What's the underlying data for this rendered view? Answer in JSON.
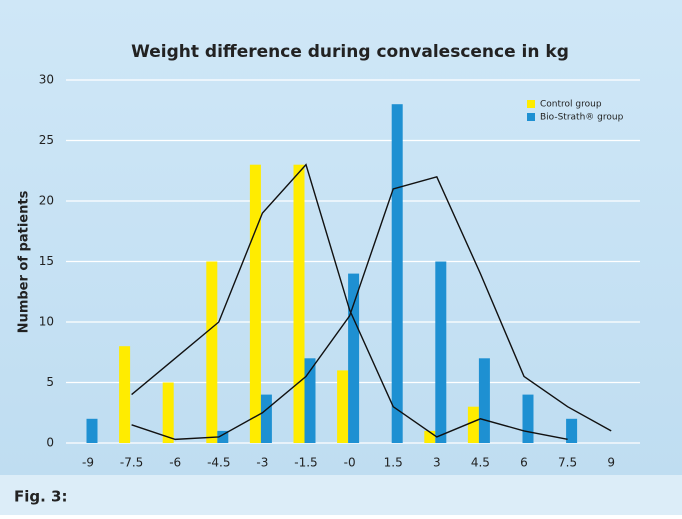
{
  "chart_data": {
    "type": "bar",
    "title": "Weight difference during convalescence in kg",
    "y_label": "Number of patients",
    "caption": "Fig. 3:",
    "categories": [
      "-9",
      "-7.5",
      "-6",
      "-4.5",
      "-3",
      "-1.5",
      "-0",
      "1.5",
      "3",
      "4.5",
      "6",
      "7.5",
      "9"
    ],
    "series": [
      {
        "name": "Control group",
        "color": "#ffec00",
        "values": [
          0,
          8,
          5,
          15,
          23,
          23,
          6,
          0,
          1,
          3,
          0,
          0,
          0
        ]
      },
      {
        "name": "Bio-Strath® group",
        "color": "#1e90d2",
        "values": [
          2,
          0,
          0,
          1,
          4,
          7,
          14,
          28,
          15,
          7,
          4,
          2,
          0
        ]
      }
    ],
    "curves": [
      {
        "color": "#111111",
        "values": [
          null,
          4,
          7,
          10,
          19,
          23,
          11,
          3,
          0.5,
          2,
          1,
          0.3,
          null
        ]
      },
      {
        "color": "#111111",
        "values": [
          null,
          1.5,
          0.3,
          0.5,
          2.5,
          5.5,
          10.5,
          21,
          22,
          14,
          5.5,
          3,
          1
        ]
      }
    ],
    "ylim": [
      0,
      30
    ],
    "yticks": [
      0,
      5,
      10,
      15,
      20,
      25,
      30
    ],
    "grid": true,
    "legend": "upper right"
  }
}
